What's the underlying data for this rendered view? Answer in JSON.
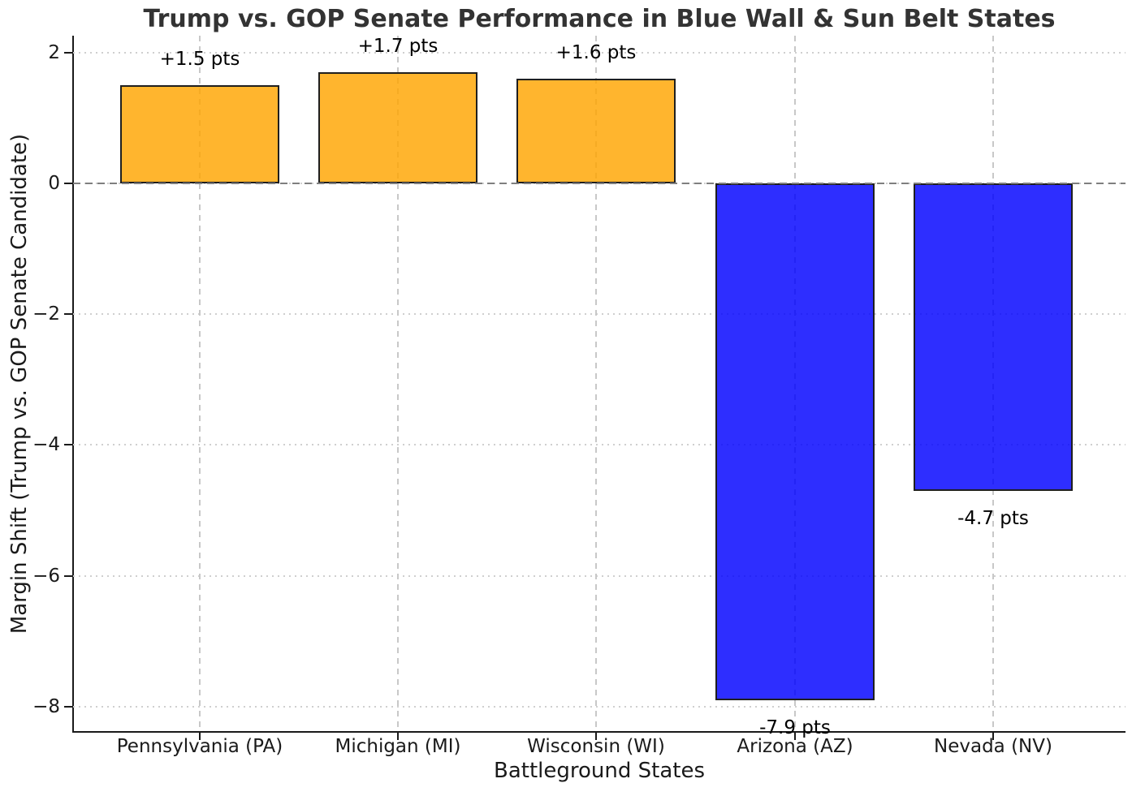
{
  "chart_data": {
    "type": "bar",
    "title": "Trump vs. GOP Senate Performance in Blue Wall & Sun Belt States",
    "xlabel": "Battleground States",
    "ylabel": "Margin Shift (Trump vs. GOP Senate Candidate)",
    "categories": [
      "Pennsylvania (PA)",
      "Michigan (MI)",
      "Wisconsin (WI)",
      "Arizona (AZ)",
      "Nevada (NV)"
    ],
    "values": [
      1.5,
      1.7,
      1.6,
      -7.9,
      -4.7
    ],
    "bar_labels": [
      "+1.5 pts",
      "+1.7 pts",
      "+1.6 pts",
      "-7.9 pts",
      "-4.7 pts"
    ],
    "bar_colors": [
      "#FFA500",
      "#FFA500",
      "#FFA500",
      "#0000FF",
      "#0000FF"
    ],
    "bar_alpha": 0.82,
    "yticks": [
      2,
      0,
      -2,
      -4,
      -6,
      -8
    ],
    "ytick_labels": [
      "2",
      "0",
      "−2",
      "−4",
      "−6",
      "−8"
    ],
    "ylim": [
      -8.4,
      2.26
    ],
    "zero_line": true,
    "grid": "both",
    "legend": "none",
    "colors": {
      "edge": "#1f1f1f",
      "grid_horizontal": "#cfcfcf",
      "grid_vertical": "#c8c8c8",
      "zero_line": "#7f7f7f",
      "spine": "#1a1a1a",
      "title": "#333333",
      "text": "#1a1a1a",
      "positive_bar": "#FFA500",
      "negative_bar": "#0000FF"
    }
  }
}
